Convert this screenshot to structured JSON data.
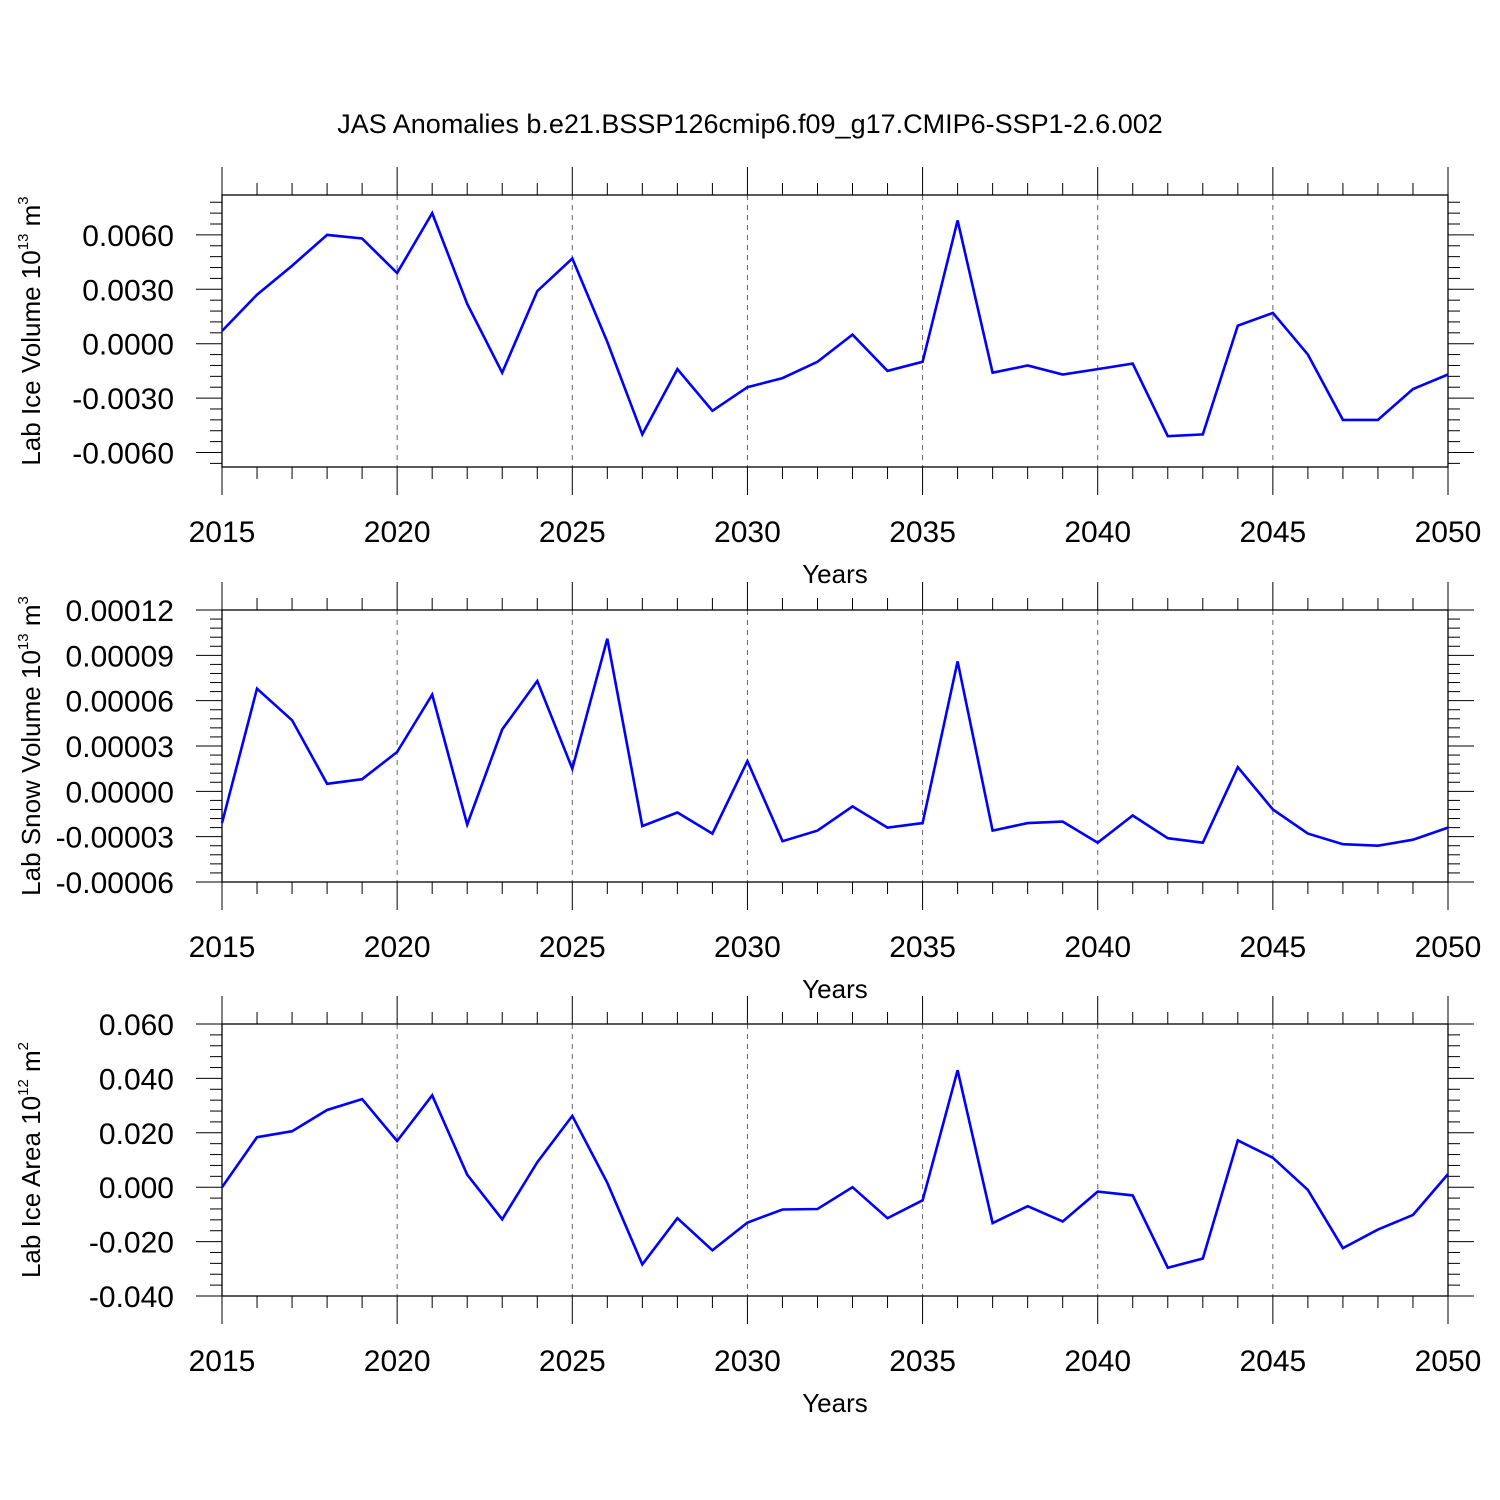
{
  "title": "JAS Anomalies b.e21.BSSP126cmip6.f09_g17.CMIP6-SSP1-2.6.002",
  "colors": {
    "line": "#0000ff",
    "axis": "#000000",
    "grid": "#666666"
  },
  "chart_data": [
    {
      "type": "line",
      "ylabel": {
        "base": "Lab Ice Volume 10",
        "exp": "13",
        "unit": " m",
        "unit_exp": "3"
      },
      "xlabel": "Years",
      "xlim": [
        2015,
        2050
      ],
      "ylim": [
        -0.0068,
        0.0082
      ],
      "yticks": [
        -0.006,
        -0.003,
        0.0,
        0.003,
        0.006
      ],
      "ytick_labels": [
        "-0.0060",
        "-0.0030",
        "0.0000",
        "0.0030",
        "0.0060"
      ],
      "xticks": [
        2015,
        2020,
        2025,
        2030,
        2035,
        2040,
        2045,
        2050
      ],
      "xtick_labels": [
        "2015",
        "2020",
        "2025",
        "2030",
        "2035",
        "2040",
        "2045",
        "2050"
      ],
      "grid": "vertical dashed at major x ticks",
      "x": [
        2015,
        2016,
        2017,
        2018,
        2019,
        2020,
        2021,
        2022,
        2023,
        2024,
        2025,
        2026,
        2027,
        2028,
        2029,
        2030,
        2031,
        2032,
        2033,
        2034,
        2035,
        2036,
        2037,
        2038,
        2039,
        2040,
        2041,
        2042,
        2043,
        2044,
        2045,
        2046,
        2047,
        2048,
        2049,
        2050
      ],
      "values": [
        0.0007,
        0.0027,
        0.0043,
        0.006,
        0.0058,
        0.0039,
        0.0072,
        0.0022,
        -0.0016,
        0.0029,
        0.0047,
        0.0001,
        -0.005,
        -0.0014,
        -0.0037,
        -0.0024,
        -0.0019,
        -0.001,
        0.0005,
        -0.0015,
        -0.001,
        0.0068,
        -0.0016,
        -0.0012,
        -0.0017,
        -0.0014,
        -0.0011,
        -0.0051,
        -0.005,
        0.001,
        0.0017,
        -0.0006,
        -0.0042,
        -0.0042,
        -0.0025,
        -0.0017
      ]
    },
    {
      "type": "line",
      "ylabel": {
        "base": "Lab Snow Volume 10",
        "exp": "13",
        "unit": " m",
        "unit_exp": "3"
      },
      "xlabel": "Years",
      "xlim": [
        2015,
        2050
      ],
      "ylim": [
        -6e-05,
        0.00012
      ],
      "yticks": [
        -6e-05,
        -3e-05,
        0.0,
        3e-05,
        6e-05,
        9e-05,
        0.00012
      ],
      "ytick_labels": [
        "-0.00006",
        "-0.00003",
        "0.00000",
        "0.00003",
        "0.00006",
        "0.00009",
        "0.00012"
      ],
      "xticks": [
        2015,
        2020,
        2025,
        2030,
        2035,
        2040,
        2045,
        2050
      ],
      "xtick_labels": [
        "2015",
        "2020",
        "2025",
        "2030",
        "2035",
        "2040",
        "2045",
        "2050"
      ],
      "grid": "vertical dashed at major x ticks",
      "x": [
        2015,
        2016,
        2017,
        2018,
        2019,
        2020,
        2021,
        2022,
        2023,
        2024,
        2025,
        2026,
        2027,
        2028,
        2029,
        2030,
        2031,
        2032,
        2033,
        2034,
        2035,
        2036,
        2037,
        2038,
        2039,
        2040,
        2041,
        2042,
        2043,
        2044,
        2045,
        2046,
        2047,
        2048,
        2049,
        2050
      ],
      "values": [
        -2.1e-05,
        6.8e-05,
        4.7e-05,
        5e-06,
        8e-06,
        2.6e-05,
        6.4e-05,
        -2.2e-05,
        4.1e-05,
        7.3e-05,
        1.5e-05,
        0.000101,
        -2.3e-05,
        -1.4e-05,
        -2.8e-05,
        2e-05,
        -3.3e-05,
        -2.6e-05,
        -1e-05,
        -2.4e-05,
        -2.1e-05,
        8.6e-05,
        -2.6e-05,
        -2.1e-05,
        -2e-05,
        -3.4e-05,
        -1.6e-05,
        -3.1e-05,
        -3.4e-05,
        1.6e-05,
        -1.2e-05,
        -2.8e-05,
        -3.5e-05,
        -3.6e-05,
        -3.2e-05,
        -2.4e-05
      ]
    },
    {
      "type": "line",
      "ylabel": {
        "base": "Lab Ice Area 10",
        "exp": "12",
        "unit": " m",
        "unit_exp": "2"
      },
      "xlabel": "Years",
      "xlim": [
        2015,
        2050
      ],
      "ylim": [
        -0.04,
        0.06
      ],
      "yticks": [
        -0.04,
        -0.02,
        0.0,
        0.02,
        0.04,
        0.06
      ],
      "ytick_labels": [
        "-0.040",
        "-0.020",
        "0.000",
        "0.020",
        "0.040",
        "0.060"
      ],
      "xticks": [
        2015,
        2020,
        2025,
        2030,
        2035,
        2040,
        2045,
        2050
      ],
      "xtick_labels": [
        "2015",
        "2020",
        "2025",
        "2030",
        "2035",
        "2040",
        "2045",
        "2050"
      ],
      "grid": "vertical dashed at major x ticks",
      "x": [
        2015,
        2016,
        2017,
        2018,
        2019,
        2020,
        2021,
        2022,
        2023,
        2024,
        2025,
        2026,
        2027,
        2028,
        2029,
        2030,
        2031,
        2032,
        2033,
        2034,
        2035,
        2036,
        2037,
        2038,
        2039,
        2040,
        2041,
        2042,
        2043,
        2044,
        2045,
        2046,
        2047,
        2048,
        2049,
        2050
      ],
      "values": [
        0.0,
        0.0184,
        0.0206,
        0.0284,
        0.0324,
        0.017,
        0.0338,
        0.0046,
        -0.0118,
        0.0092,
        0.0262,
        0.0016,
        -0.0284,
        -0.0114,
        -0.0232,
        -0.013,
        -0.0082,
        -0.008,
        0.0,
        -0.0114,
        -0.0048,
        0.043,
        -0.0132,
        -0.007,
        -0.0126,
        -0.0016,
        -0.003,
        -0.0296,
        -0.0262,
        0.0172,
        0.0108,
        -0.001,
        -0.0224,
        -0.0156,
        -0.0102,
        0.0048
      ]
    }
  ]
}
